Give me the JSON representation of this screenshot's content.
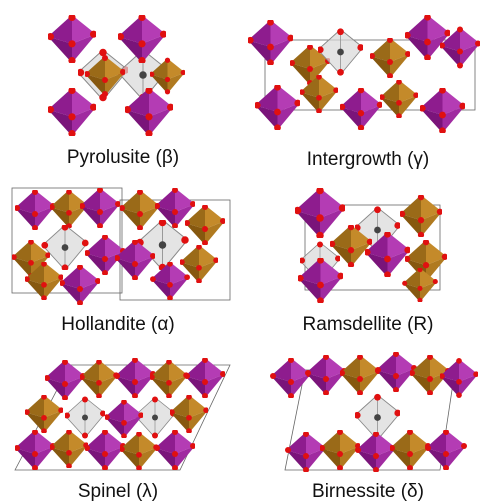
{
  "labels": [
    "Pyrolusite (β)",
    "Intergrowth (γ)",
    "Hollandite (α)",
    "Ramsdellite (R)",
    "Spinel (λ)",
    "Birnessite (δ)"
  ]
}
